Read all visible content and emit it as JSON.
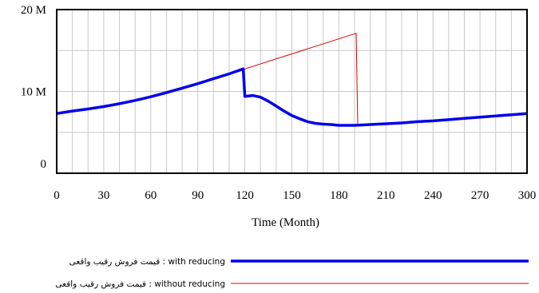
{
  "chart_data": {
    "type": "line",
    "title": "",
    "xlabel": "Time (Month)",
    "ylabel": "",
    "xlim": [
      0,
      300
    ],
    "ylim": [
      0,
      20000000
    ],
    "x_ticks": [
      0,
      30,
      60,
      90,
      120,
      150,
      180,
      210,
      240,
      270,
      300
    ],
    "x_tick_labels": [
      "0",
      "30",
      "60",
      "90",
      "120",
      "150",
      "180",
      "210",
      "240",
      "270",
      "300"
    ],
    "y_ticks": [
      0,
      10000000,
      20000000
    ],
    "y_tick_labels": [
      "0",
      "10 M",
      "20 M"
    ],
    "grid": true,
    "legend_position": "bottom",
    "series": [
      {
        "name": "قیمت فروش رقیب واقعی : with reducing",
        "color": "#0000ee",
        "style": "thick",
        "x": [
          0,
          10,
          20,
          30,
          40,
          50,
          60,
          70,
          80,
          90,
          100,
          110,
          119,
          120,
          125,
          130,
          135,
          140,
          145,
          150,
          155,
          160,
          165,
          170,
          175,
          180,
          185,
          190,
          200,
          210,
          220,
          230,
          240,
          250,
          260,
          270,
          280,
          290,
          300
        ],
        "values": [
          7300000,
          7600000,
          7850000,
          8150000,
          8500000,
          8900000,
          9350000,
          9850000,
          10400000,
          10950000,
          11550000,
          12150000,
          12750000,
          9400000,
          9500000,
          9300000,
          8800000,
          8200000,
          7600000,
          7050000,
          6650000,
          6300000,
          6100000,
          6000000,
          5950000,
          5850000,
          5850000,
          5850000,
          5950000,
          6050000,
          6150000,
          6300000,
          6400000,
          6550000,
          6700000,
          6850000,
          7000000,
          7150000,
          7300000
        ]
      },
      {
        "name": "قیمت فروش رقیب واقعی : without reducing",
        "color": "#dd0000",
        "style": "thin",
        "x": [
          120,
          191,
          192
        ],
        "values": [
          12750000,
          17100000,
          5850000
        ]
      }
    ],
    "legend": [
      {
        "label": "قیمت فروش رقیب واقعی : with reducing",
        "color": "#0000ee"
      },
      {
        "label": "قیمت فروش رقیب واقعی : without reducing",
        "color": "#dd0000"
      }
    ]
  }
}
